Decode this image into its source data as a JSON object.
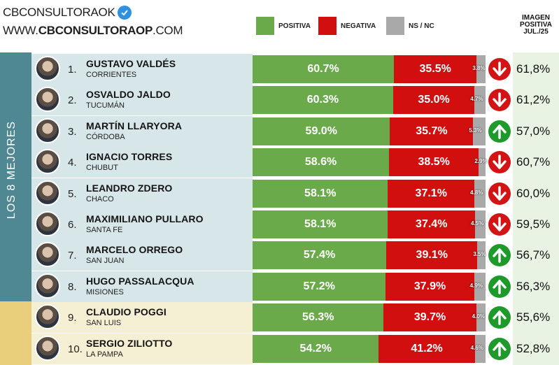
{
  "brand": {
    "line1": "CBCONSULTORAOK",
    "line2_prefix": "WWW.",
    "line2_bold": "CBCONSULTORAOP",
    "line2_suffix": ".COM"
  },
  "legend": [
    {
      "label": "POSITIVA",
      "color": "#6aaa4a"
    },
    {
      "label": "NEGATIVA",
      "color": "#d10f0f"
    },
    {
      "label": "NS / NC",
      "color": "#a9a9a9"
    }
  ],
  "prev_header": [
    "IMAGEN",
    "POSITIVA",
    "JUL./25"
  ],
  "sections": [
    {
      "label": "LOS 8 MEJORES",
      "color": "#4f8792",
      "row_color": "#d7e6e8"
    },
    {
      "label": "",
      "color": "#e9ce7c",
      "row_color": "#f5efd3"
    }
  ],
  "chart_data": {
    "type": "bar",
    "title": "",
    "series": [
      {
        "name": "POSITIVA",
        "values": [
          60.7,
          60.3,
          59.0,
          58.6,
          58.1,
          58.1,
          57.4,
          57.2,
          56.3,
          54.2
        ]
      },
      {
        "name": "NEGATIVA",
        "values": [
          35.5,
          35.0,
          35.7,
          38.5,
          37.1,
          37.4,
          39.1,
          37.9,
          39.7,
          41.2
        ]
      },
      {
        "name": "NS / NC",
        "values": [
          3.8,
          4.7,
          5.3,
          2.9,
          4.8,
          4.5,
          3.5,
          4.9,
          4.0,
          4.6
        ]
      }
    ],
    "rows": [
      {
        "rank": "1.",
        "name": "GUSTAVO VALDÉS",
        "province": "CORRIENTES",
        "pos": "60.7%",
        "neg": "35.5%",
        "ns": "3.8%",
        "trend": "down",
        "prev": "61,8%",
        "section": 0
      },
      {
        "rank": "2.",
        "name": "OSVALDO JALDO",
        "province": "TUCUMÁN",
        "pos": "60.3%",
        "neg": "35.0%",
        "ns": "4.7%",
        "trend": "down",
        "prev": "61,2%",
        "section": 0
      },
      {
        "rank": "3.",
        "name": "MARTÍN LLARYORA",
        "province": "CÓRDOBA",
        "pos": "59.0%",
        "neg": "35.7%",
        "ns": "5.3%",
        "trend": "up",
        "prev": "57,0%",
        "section": 0
      },
      {
        "rank": "4.",
        "name": "IGNACIO TORRES",
        "province": "CHUBUT",
        "pos": "58.6%",
        "neg": "38.5%",
        "ns": "2.9%",
        "trend": "down",
        "prev": "60,7%",
        "section": 0
      },
      {
        "rank": "5.",
        "name": "LEANDRO ZDERO",
        "province": "CHACO",
        "pos": "58.1%",
        "neg": "37.1%",
        "ns": "4.8%",
        "trend": "down",
        "prev": "60,0%",
        "section": 0
      },
      {
        "rank": "6.",
        "name": "MAXIMILIANO PULLARO",
        "province": "SANTA FE",
        "pos": "58.1%",
        "neg": "37.4%",
        "ns": "4.5%",
        "trend": "down",
        "prev": "59,5%",
        "section": 0
      },
      {
        "rank": "7.",
        "name": "MARCELO ORREGO",
        "province": "SAN JUAN",
        "pos": "57.4%",
        "neg": "39.1%",
        "ns": "3.5%",
        "trend": "up",
        "prev": "56,7%",
        "section": 0
      },
      {
        "rank": "8.",
        "name": "HUGO PASSALACQUA",
        "province": "MISIONES",
        "pos": "57.2%",
        "neg": "37.9%",
        "ns": "4.9%",
        "trend": "up",
        "prev": "56,3%",
        "section": 0
      },
      {
        "rank": "9.",
        "name": "CLAUDIO POGGI",
        "province": "SAN LUIS",
        "pos": "56.3%",
        "neg": "39.7%",
        "ns": "4.0%",
        "trend": "up",
        "prev": "55,6%",
        "section": 1
      },
      {
        "rank": "10.",
        "name": "SERGIO ZILIOTTO",
        "province": "LA PAMPA",
        "pos": "54.2%",
        "neg": "41.2%",
        "ns": "4.6%",
        "trend": "up",
        "prev": "52,8%",
        "section": 1
      }
    ],
    "xlim": [
      0,
      100
    ]
  }
}
